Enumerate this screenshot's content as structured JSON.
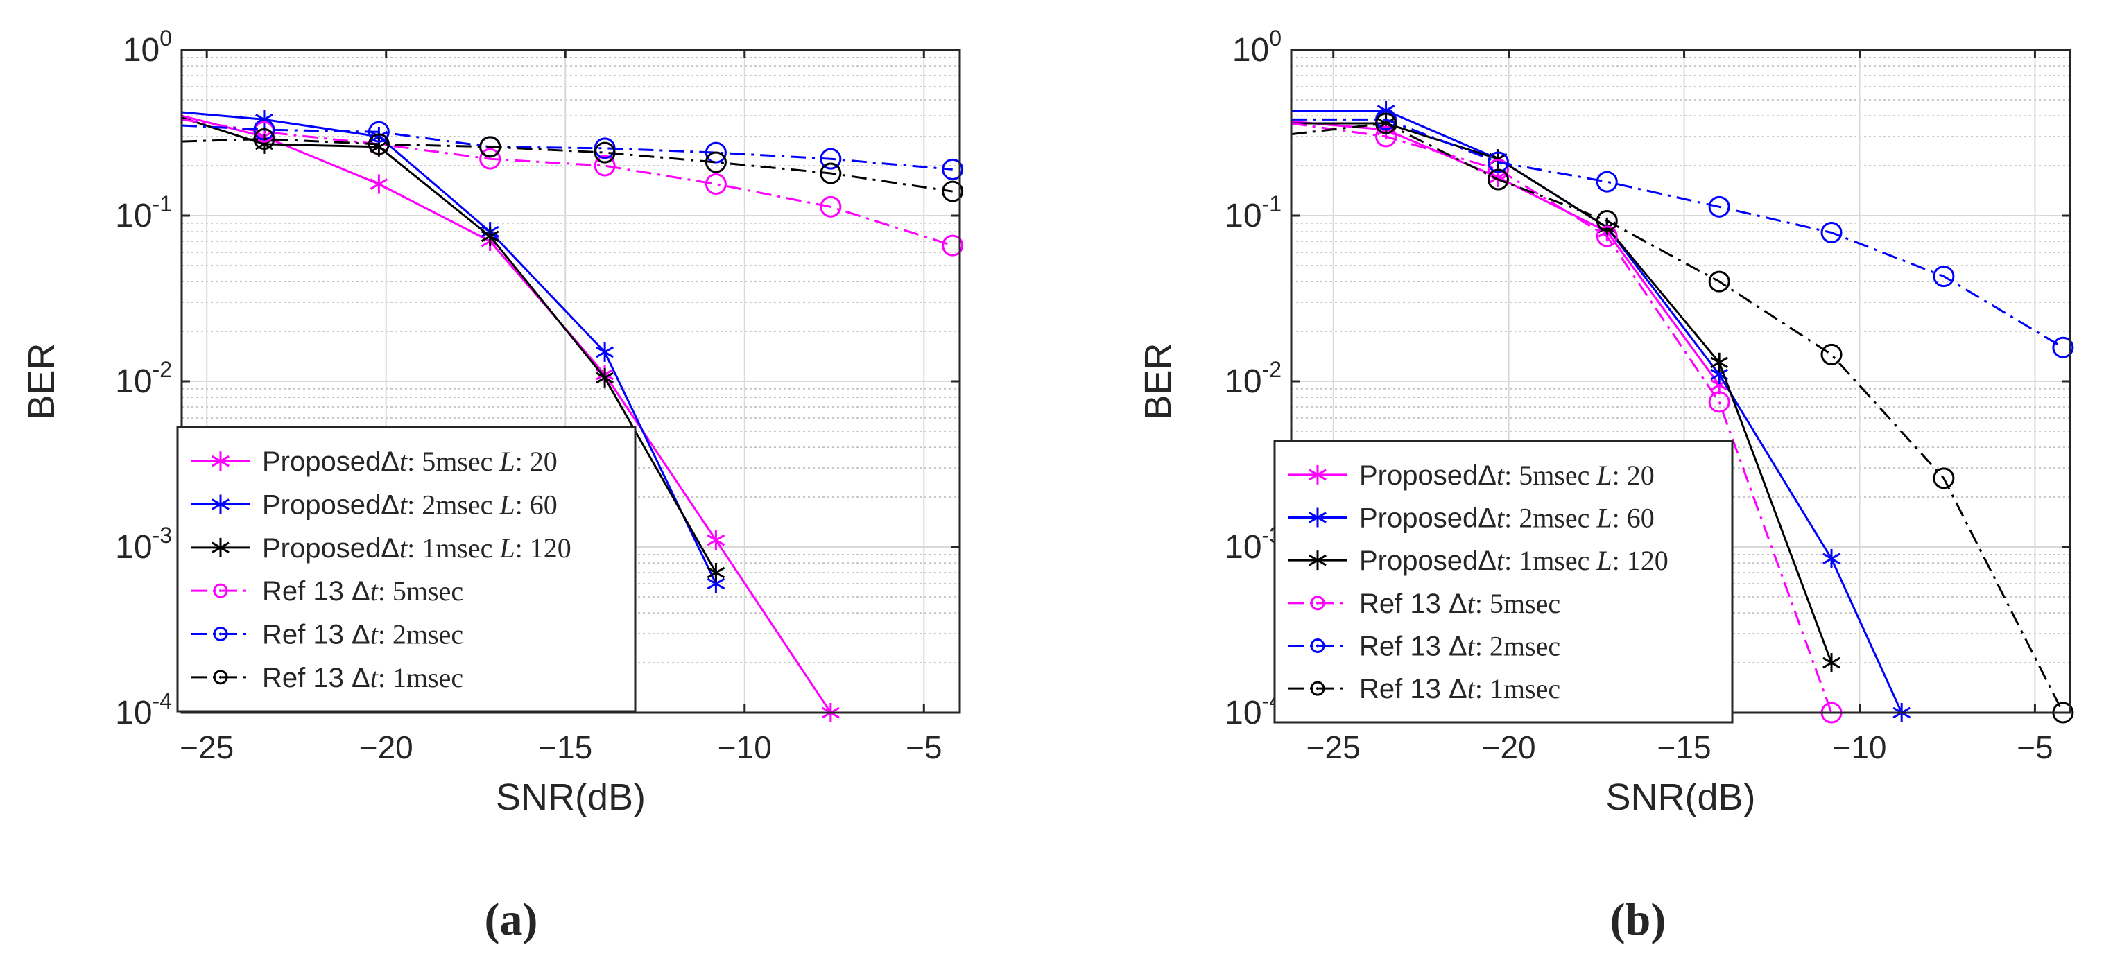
{
  "chart_data": [
    {
      "type": "line",
      "panel_label": "(a)",
      "xlabel": "SNR(dB)",
      "ylabel": "BER",
      "xlim": [
        -25.7,
        -4
      ],
      "ylim": [
        0.0001,
        1
      ],
      "yscale": "log",
      "grid": true,
      "minor_grid": true,
      "legend_position": "lower-left",
      "x_ticks": [
        {
          "value": -25,
          "label": "−25"
        },
        {
          "value": -20,
          "label": "−20"
        },
        {
          "value": -15,
          "label": "−15"
        },
        {
          "value": -10,
          "label": "−10"
        },
        {
          "value": -5,
          "label": "−5"
        }
      ],
      "y_ticks": [
        {
          "value": 1,
          "base": "10",
          "exp": "0"
        },
        {
          "value": 0.1,
          "base": "10",
          "exp": "-1"
        },
        {
          "value": 0.01,
          "base": "10",
          "exp": "-2"
        },
        {
          "value": 0.001,
          "base": "10",
          "exp": "-3"
        },
        {
          "value": 0.0001,
          "base": "10",
          "exp": "-4"
        }
      ],
      "series": [
        {
          "name": "ProposedΔt: 5msec L: 20",
          "legend": [
            "ProposedΔ",
            "t",
            ": 5msec ",
            "L",
            ": 20"
          ],
          "color": "#ff00ff",
          "dash": "solid",
          "marker": "asterisk",
          "x": [
            -25.7,
            -23.4,
            -20.2,
            -17.1,
            -13.9,
            -10.8,
            -7.6
          ],
          "y": [
            0.4,
            0.3,
            0.155,
            0.07,
            0.011,
            0.0011,
            0.0001
          ]
        },
        {
          "name": "ProposedΔt: 2msec L: 60",
          "legend": [
            "ProposedΔ",
            "t",
            ": 2msec ",
            "L",
            ": 60"
          ],
          "color": "#0000ff",
          "dash": "solid",
          "marker": "asterisk",
          "x": [
            -25.7,
            -23.4,
            -20.2,
            -17.1,
            -13.9,
            -10.8
          ],
          "y": [
            0.42,
            0.38,
            0.3,
            0.08,
            0.015,
            0.0006
          ]
        },
        {
          "name": "ProposedΔt: 1msec L: 120",
          "legend": [
            "ProposedΔ",
            "t",
            ": 1msec ",
            "L",
            ": 120"
          ],
          "color": "#000000",
          "dash": "solid",
          "marker": "asterisk",
          "x": [
            -25.7,
            -23.4,
            -20.2,
            -17.1,
            -13.9,
            -10.8
          ],
          "y": [
            0.39,
            0.27,
            0.26,
            0.075,
            0.0105,
            0.0007
          ]
        },
        {
          "name": "Ref 13 Δt: 5msec",
          "legend": [
            "Ref 13 Δ",
            "t",
            ": 5msec",
            "",
            ""
          ],
          "color": "#ff00ff",
          "dash": "dashdot",
          "marker": "circle",
          "x": [
            -25.7,
            -23.4,
            -20.2,
            -17.1,
            -13.9,
            -10.8,
            -7.6,
            -4.2
          ],
          "y": [
            0.38,
            0.32,
            0.27,
            0.22,
            0.2,
            0.155,
            0.113,
            0.066
          ]
        },
        {
          "name": "Ref 13 Δt: 2msec",
          "legend": [
            "Ref 13 Δ",
            "t",
            ": 2msec",
            "",
            ""
          ],
          "color": "#0000ff",
          "dash": "dashdot",
          "marker": "circle",
          "x": [
            -25.7,
            -23.4,
            -20.2,
            -17.1,
            -13.9,
            -10.8,
            -7.6,
            -4.2
          ],
          "y": [
            0.35,
            0.33,
            0.32,
            0.26,
            0.255,
            0.24,
            0.22,
            0.19
          ]
        },
        {
          "name": "Ref 13 Δt: 1msec",
          "legend": [
            "Ref 13 Δ",
            "t",
            ": 1msec",
            "",
            ""
          ],
          "color": "#000000",
          "dash": "dashdot",
          "marker": "circle",
          "x": [
            -25.7,
            -23.4,
            -20.2,
            -17.1,
            -13.9,
            -10.8,
            -7.6,
            -4.2
          ],
          "y": [
            0.28,
            0.29,
            0.27,
            0.26,
            0.24,
            0.21,
            0.18,
            0.14
          ]
        }
      ]
    },
    {
      "type": "line",
      "panel_label": "(b)",
      "xlabel": "SNR(dB)",
      "ylabel": "BER",
      "xlim": [
        -26.2,
        -4
      ],
      "ylim": [
        0.0001,
        1
      ],
      "yscale": "log",
      "grid": true,
      "minor_grid": true,
      "legend_position": "lower-left",
      "x_ticks": [
        {
          "value": -25,
          "label": "−25"
        },
        {
          "value": -20,
          "label": "−20"
        },
        {
          "value": -15,
          "label": "−15"
        },
        {
          "value": -10,
          "label": "−10"
        },
        {
          "value": -5,
          "label": "−5"
        }
      ],
      "y_ticks": [
        {
          "value": 1,
          "base": "10",
          "exp": "0"
        },
        {
          "value": 0.1,
          "base": "10",
          "exp": "-1"
        },
        {
          "value": 0.01,
          "base": "10",
          "exp": "-2"
        },
        {
          "value": 0.001,
          "base": "10",
          "exp": "-3"
        },
        {
          "value": 0.0001,
          "base": "10",
          "exp": "-4"
        }
      ],
      "series": [
        {
          "name": "ProposedΔt: 5msec L: 20",
          "legend": [
            "ProposedΔ",
            "t",
            ": 5msec ",
            "L",
            ": 20"
          ],
          "color": "#ff00ff",
          "dash": "solid",
          "marker": "asterisk",
          "x": [
            -26.2,
            -23.5,
            -20.3,
            -17.2,
            -14
          ],
          "y": [
            0.37,
            0.33,
            0.17,
            0.08,
            0.0095
          ]
        },
        {
          "name": "ProposedΔt: 2msec L: 60",
          "legend": [
            "ProposedΔ",
            "t",
            ": 2msec ",
            "L",
            ": 60"
          ],
          "color": "#0000ff",
          "dash": "solid",
          "marker": "asterisk",
          "x": [
            -26.2,
            -23.5,
            -20.3,
            -17.2,
            -14,
            -10.8,
            -8.8
          ],
          "y": [
            0.43,
            0.43,
            0.22,
            0.085,
            0.011,
            0.00085,
            0.0001
          ]
        },
        {
          "name": "ProposedΔt: 1msec L: 120",
          "legend": [
            "ProposedΔ",
            "t",
            ": 1msec ",
            "L",
            ": 120"
          ],
          "color": "#000000",
          "dash": "solid",
          "marker": "asterisk",
          "x": [
            -26.2,
            -23.5,
            -20.3,
            -17.2,
            -14,
            -10.8
          ],
          "y": [
            0.36,
            0.36,
            0.22,
            0.085,
            0.013,
            0.0002
          ]
        },
        {
          "name": "Ref 13 Δt: 5msec",
          "legend": [
            "Ref 13 Δ",
            "t",
            ": 5msec",
            "",
            ""
          ],
          "color": "#ff00ff",
          "dash": "dashdot",
          "marker": "circle",
          "x": [
            -26.2,
            -23.5,
            -20.3,
            -17.2,
            -14,
            -10.8
          ],
          "y": [
            0.36,
            0.3,
            0.19,
            0.075,
            0.0075,
            0.0001
          ]
        },
        {
          "name": "Ref 13 Δt: 2msec",
          "legend": [
            "Ref 13 Δ",
            "t",
            ": 2msec",
            "",
            ""
          ],
          "color": "#0000ff",
          "dash": "dashdot",
          "marker": "circle",
          "x": [
            -26.2,
            -23.5,
            -20.3,
            -17.2,
            -14,
            -10.8,
            -7.6,
            -4.2
          ],
          "y": [
            0.38,
            0.38,
            0.21,
            0.16,
            0.113,
            0.079,
            0.043,
            0.016
          ]
        },
        {
          "name": "Ref 13 Δt: 1msec",
          "legend": [
            "Ref 13 Δ",
            "t",
            ": 1msec",
            "",
            ""
          ],
          "color": "#000000",
          "dash": "dashdot",
          "marker": "circle",
          "x": [
            -26.2,
            -23.5,
            -20.3,
            -17.2,
            -14,
            -10.8,
            -7.6,
            -4.2
          ],
          "y": [
            0.31,
            0.36,
            0.165,
            0.093,
            0.04,
            0.0145,
            0.0026,
            0.0001
          ]
        }
      ]
    }
  ]
}
